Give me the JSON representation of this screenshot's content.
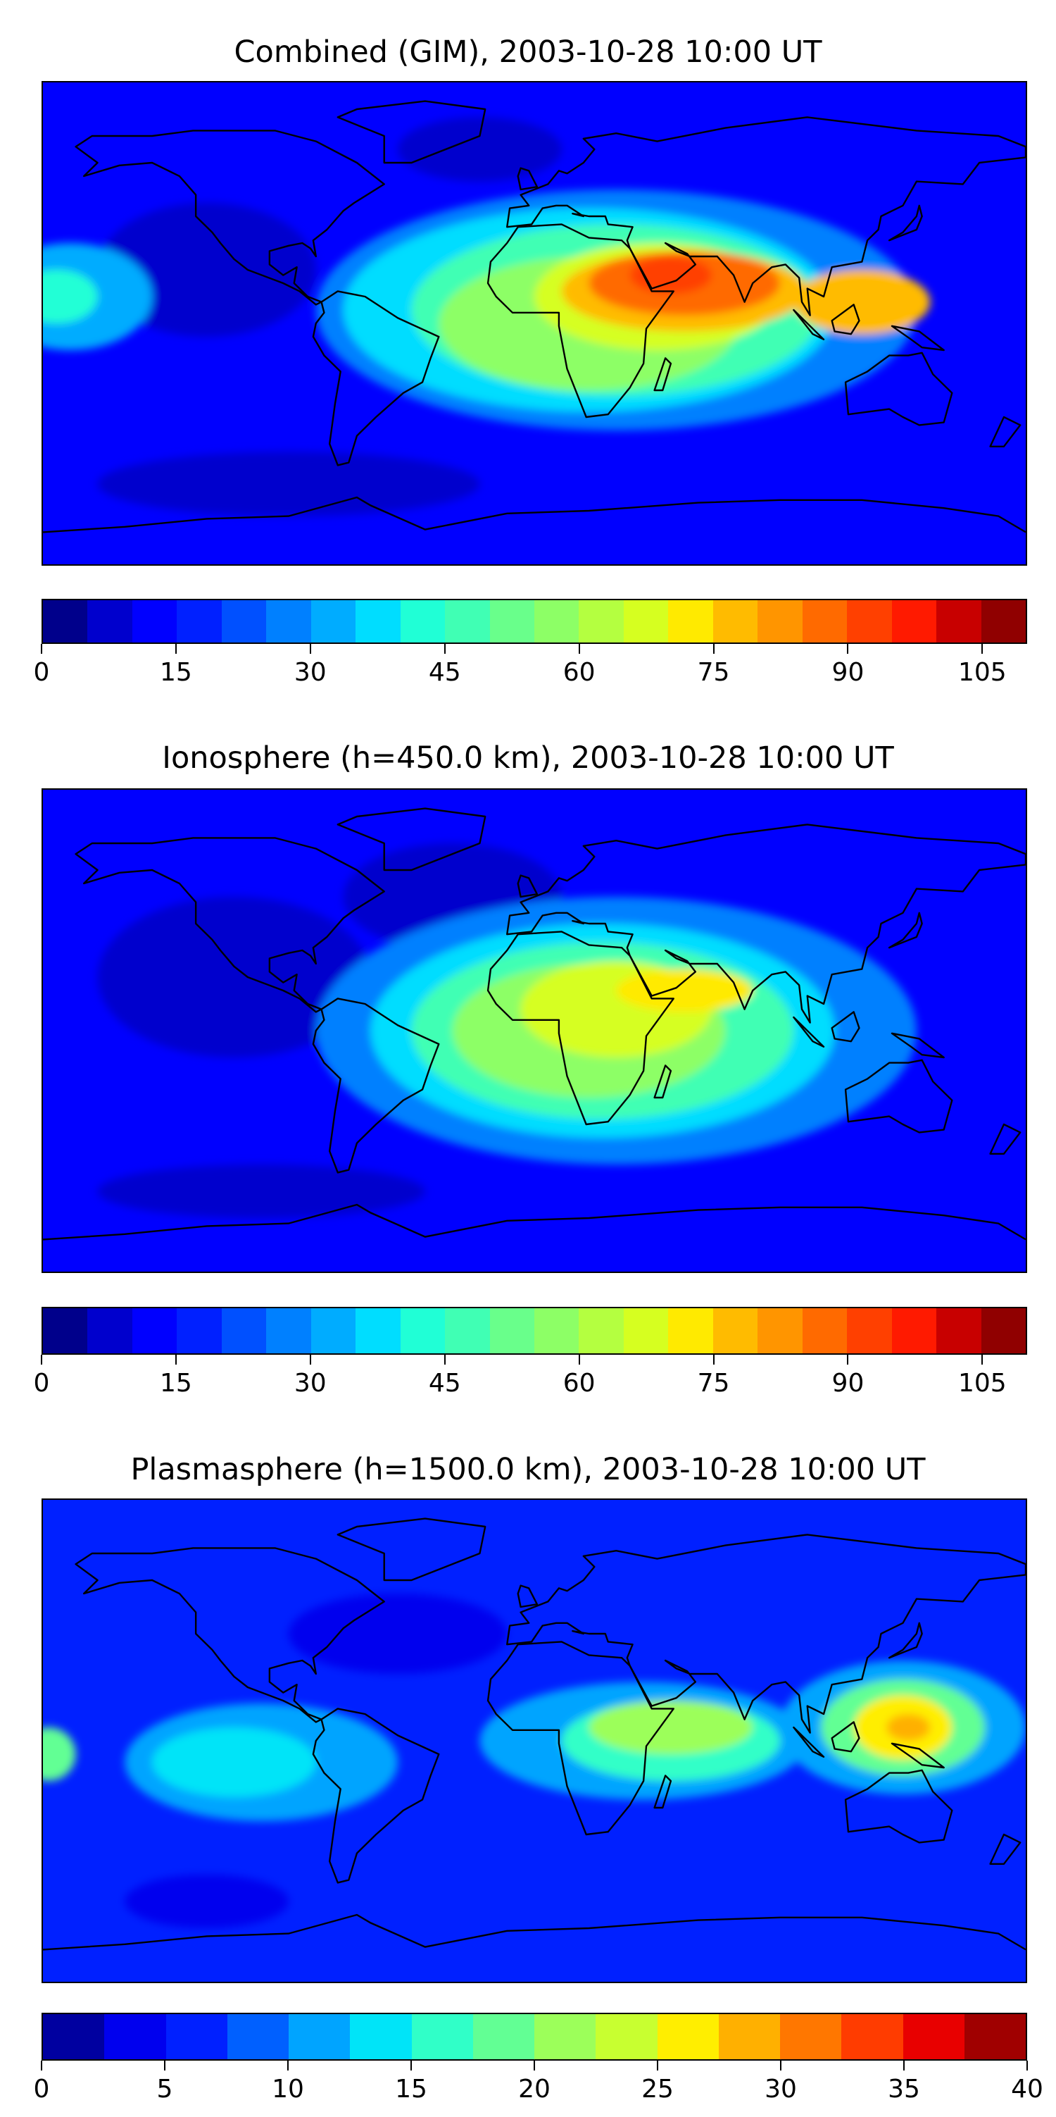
{
  "chart_data": [
    {
      "type": "heatmap",
      "title": "Combined (GIM), 2003-10-28 10:00 UT",
      "projection": "equirectangular world map with coastlines",
      "colorbar": {
        "range": [
          0,
          110
        ],
        "step": 5,
        "ticks": [
          0,
          15,
          30,
          45,
          60,
          75,
          90,
          105
        ],
        "colors": [
          "#00008b",
          "#0000cd",
          "#0000ff",
          "#0020ff",
          "#0050ff",
          "#0080ff",
          "#00acff",
          "#00ddff",
          "#20ffd6",
          "#40ffb4",
          "#69ff8b",
          "#8dff66",
          "#b4ff40",
          "#d6ff20",
          "#ffea00",
          "#ffbb00",
          "#ff9500",
          "#ff6a00",
          "#ff4000",
          "#ff1a00",
          "#c80000",
          "#900000"
        ]
      },
      "field": {
        "background": 12,
        "features": [
          {
            "lon": -90,
            "lat": -60,
            "rx": 70,
            "ry": 12,
            "value": 7
          },
          {
            "lon": -120,
            "lat": 20,
            "rx": 40,
            "ry": 25,
            "value": 8
          },
          {
            "lon": -20,
            "lat": 65,
            "rx": 30,
            "ry": 12,
            "value": 8
          },
          {
            "lon": 30,
            "lat": 5,
            "rx": 110,
            "ry": 45,
            "value": 25
          },
          {
            "lon": -170,
            "lat": 10,
            "rx": 30,
            "ry": 20,
            "value": 30
          },
          {
            "lon": 20,
            "lat": 5,
            "rx": 90,
            "ry": 38,
            "value": 35
          },
          {
            "lon": -175,
            "lat": 10,
            "rx": 15,
            "ry": 10,
            "value": 40
          },
          {
            "lon": 30,
            "lat": 5,
            "rx": 75,
            "ry": 32,
            "value": 45
          },
          {
            "lon": 20,
            "lat": 0,
            "rx": 55,
            "ry": 25,
            "value": 55
          },
          {
            "lon": 45,
            "lat": 10,
            "rx": 45,
            "ry": 20,
            "value": 65
          },
          {
            "lon": 55,
            "lat": 12,
            "rx": 45,
            "ry": 15,
            "value": 75
          },
          {
            "lon": 120,
            "lat": 8,
            "rx": 25,
            "ry": 12,
            "value": 75
          },
          {
            "lon": 55,
            "lat": 15,
            "rx": 35,
            "ry": 12,
            "value": 85
          },
          {
            "lon": 50,
            "lat": 18,
            "rx": 15,
            "ry": 7,
            "value": 92
          }
        ]
      }
    },
    {
      "type": "heatmap",
      "title": "Ionosphere  (h=450.0 km), 2003-10-28 10:00 UT",
      "projection": "equirectangular world map with coastlines",
      "colorbar": {
        "range": [
          0,
          110
        ],
        "step": 5,
        "ticks": [
          0,
          15,
          30,
          45,
          60,
          75,
          90,
          105
        ],
        "colors": [
          "#00008b",
          "#0000cd",
          "#0000ff",
          "#0020ff",
          "#0050ff",
          "#0080ff",
          "#00acff",
          "#00ddff",
          "#20ffd6",
          "#40ffb4",
          "#69ff8b",
          "#8dff66",
          "#b4ff40",
          "#d6ff20",
          "#ffea00",
          "#ffbb00",
          "#ff9500",
          "#ff6a00",
          "#ff4000",
          "#ff1a00",
          "#c80000",
          "#900000"
        ]
      },
      "field": {
        "background": 12,
        "features": [
          {
            "lon": -110,
            "lat": 20,
            "rx": 50,
            "ry": 30,
            "value": 6
          },
          {
            "lon": -30,
            "lat": 50,
            "rx": 40,
            "ry": 20,
            "value": 6
          },
          {
            "lon": -100,
            "lat": -60,
            "rx": 60,
            "ry": 10,
            "value": 7
          },
          {
            "lon": 30,
            "lat": 0,
            "rx": 110,
            "ry": 50,
            "value": 25
          },
          {
            "lon": 25,
            "lat": 0,
            "rx": 85,
            "ry": 40,
            "value": 35
          },
          {
            "lon": 25,
            "lat": 0,
            "rx": 70,
            "ry": 33,
            "value": 45
          },
          {
            "lon": 20,
            "lat": 0,
            "rx": 50,
            "ry": 25,
            "value": 55
          },
          {
            "lon": 30,
            "lat": 8,
            "rx": 35,
            "ry": 18,
            "value": 65
          },
          {
            "lon": 55,
            "lat": 15,
            "rx": 25,
            "ry": 8,
            "value": 72
          }
        ]
      }
    },
    {
      "type": "heatmap",
      "title": "Plasmasphere (h=1500.0 km), 2003-10-28 10:00 UT",
      "projection": "equirectangular world map with coastlines",
      "colorbar": {
        "range": [
          0,
          40
        ],
        "step": 2.5,
        "ticks": [
          0,
          5,
          10,
          15,
          20,
          25,
          30,
          35,
          40
        ],
        "colors": [
          "#0000a0",
          "#0000ee",
          "#0020ff",
          "#0060ff",
          "#00a4ff",
          "#00e4f8",
          "#30ffc8",
          "#62ff94",
          "#9cff5a",
          "#c8ff30",
          "#ffee00",
          "#ffb000",
          "#ff7700",
          "#ff3c00",
          "#e80000",
          "#a00000"
        ]
      },
      "field": {
        "background": 6,
        "features": [
          {
            "lon": -50,
            "lat": 40,
            "rx": 40,
            "ry": 15,
            "value": 3
          },
          {
            "lon": -120,
            "lat": -60,
            "rx": 30,
            "ry": 10,
            "value": 3
          },
          {
            "lon": -100,
            "lat": -8,
            "rx": 50,
            "ry": 22,
            "value": 10
          },
          {
            "lon": 40,
            "lat": 0,
            "rx": 60,
            "ry": 22,
            "value": 10
          },
          {
            "lon": 135,
            "lat": 5,
            "rx": 45,
            "ry": 25,
            "value": 10
          },
          {
            "lon": -110,
            "lat": -8,
            "rx": 30,
            "ry": 13,
            "value": 13
          },
          {
            "lon": 50,
            "lat": 0,
            "rx": 40,
            "ry": 15,
            "value": 15
          },
          {
            "lon": 135,
            "lat": 5,
            "rx": 30,
            "ry": 18,
            "value": 18
          },
          {
            "lon": -178,
            "lat": -5,
            "rx": 10,
            "ry": 10,
            "value": 18
          },
          {
            "lon": 50,
            "lat": 5,
            "rx": 30,
            "ry": 10,
            "value": 20
          },
          {
            "lon": 135,
            "lat": 5,
            "rx": 18,
            "ry": 12,
            "value": 25
          },
          {
            "lon": 137,
            "lat": 5,
            "rx": 8,
            "ry": 5,
            "value": 29
          }
        ]
      }
    }
  ]
}
